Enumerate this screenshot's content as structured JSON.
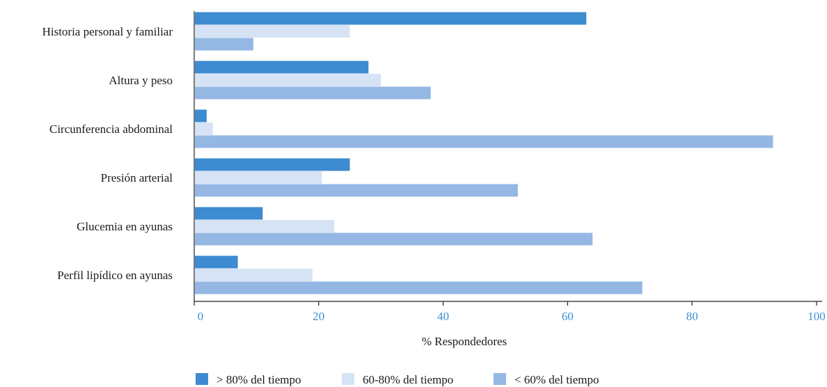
{
  "chart_data": {
    "type": "bar",
    "orientation": "horizontal",
    "categories": [
      "Historia personal y familiar",
      "Altura y peso",
      "Circunferencia abdominal",
      "Presión arterial",
      "Glucemia en ayunas",
      "Perfil lipídico en ayunas"
    ],
    "series": [
      {
        "name": "> 80% del tiempo",
        "color": "#3d8bd1",
        "values": [
          63,
          28,
          2,
          25,
          11,
          7
        ]
      },
      {
        "name": "60-80% del tiempo",
        "color": "#d6e3f5",
        "values": [
          25,
          30,
          3,
          20.5,
          22.5,
          19
        ]
      },
      {
        "name": "< 60% del tiempo",
        "color": "#94b7e3",
        "values": [
          9.5,
          38,
          93,
          52,
          64,
          72
        ]
      }
    ],
    "xlabel": "% Respondedores",
    "xlim": [
      0,
      100
    ],
    "xticks": [
      0,
      20,
      40,
      60,
      80,
      100
    ],
    "grid": false,
    "legend_position": "bottom"
  }
}
